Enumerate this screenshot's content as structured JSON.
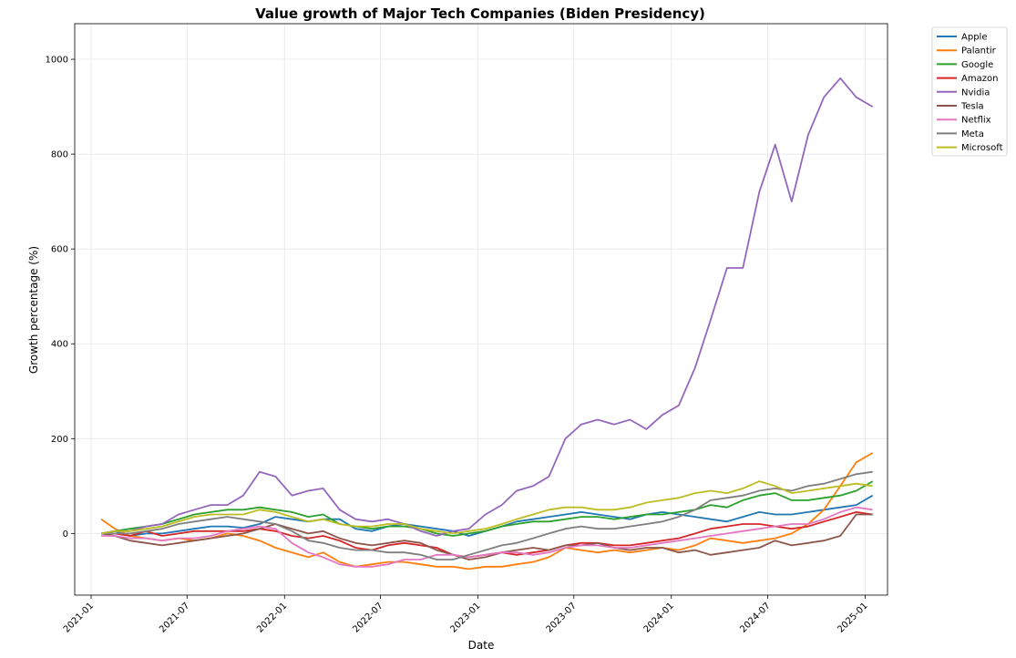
{
  "chart_data": {
    "type": "line",
    "title": "Value growth of Major Tech Companies (Biden Presidency)",
    "xlabel": "Date",
    "ylabel": "Growth percentage (%)",
    "xlim": [
      "2020-12-01",
      "2025-02-12"
    ],
    "ylim": [
      -130,
      1075
    ],
    "x_ticks": [
      "2021-01",
      "2021-07",
      "2022-01",
      "2022-07",
      "2023-01",
      "2023-07",
      "2024-01",
      "2024-07",
      "2025-01"
    ],
    "y_ticks": [
      0,
      200,
      400,
      600,
      800,
      1000
    ],
    "grid": true,
    "legend_position": "outside-top-right",
    "x": [
      "2021-01-20",
      "2021-02-15",
      "2021-03-15",
      "2021-04-15",
      "2021-05-15",
      "2021-06-15",
      "2021-07-15",
      "2021-08-15",
      "2021-09-15",
      "2021-10-15",
      "2021-11-15",
      "2021-12-15",
      "2022-01-15",
      "2022-02-15",
      "2022-03-15",
      "2022-04-15",
      "2022-05-15",
      "2022-06-15",
      "2022-07-15",
      "2022-08-15",
      "2022-09-15",
      "2022-10-15",
      "2022-11-15",
      "2022-12-15",
      "2023-01-15",
      "2023-02-15",
      "2023-03-15",
      "2023-04-15",
      "2023-05-15",
      "2023-06-15",
      "2023-07-15",
      "2023-08-15",
      "2023-09-15",
      "2023-10-15",
      "2023-11-15",
      "2023-12-15",
      "2024-01-15",
      "2024-02-15",
      "2024-03-15",
      "2024-04-15",
      "2024-05-15",
      "2024-06-15",
      "2024-07-15",
      "2024-08-15",
      "2024-09-15",
      "2024-10-15",
      "2024-11-15",
      "2024-12-15",
      "2025-01-15"
    ],
    "series": [
      {
        "name": "Apple",
        "color": "#1f77b4",
        "values": [
          0,
          5,
          -5,
          0,
          0,
          5,
          10,
          15,
          15,
          12,
          20,
          35,
          30,
          25,
          30,
          30,
          10,
          5,
          15,
          20,
          15,
          10,
          5,
          -5,
          5,
          15,
          25,
          30,
          35,
          40,
          45,
          40,
          35,
          30,
          40,
          45,
          40,
          35,
          30,
          25,
          35,
          45,
          40,
          40,
          45,
          50,
          55,
          60,
          80
        ]
      },
      {
        "name": "Palantir",
        "color": "#ff7f0e",
        "values": [
          30,
          10,
          -5,
          -10,
          -15,
          -10,
          -15,
          -10,
          0,
          -5,
          -15,
          -30,
          -40,
          -50,
          -40,
          -60,
          -70,
          -65,
          -60,
          -60,
          -65,
          -70,
          -70,
          -75,
          -70,
          -70,
          -65,
          -60,
          -50,
          -30,
          -35,
          -40,
          -35,
          -40,
          -35,
          -30,
          -35,
          -25,
          -10,
          -15,
          -20,
          -15,
          -10,
          0,
          20,
          50,
          100,
          150,
          170
        ]
      },
      {
        "name": "Google",
        "color": "#2ca02c",
        "values": [
          0,
          5,
          10,
          15,
          20,
          30,
          40,
          45,
          50,
          50,
          55,
          50,
          45,
          35,
          40,
          20,
          15,
          10,
          15,
          15,
          10,
          0,
          -5,
          0,
          5,
          15,
          20,
          25,
          25,
          30,
          35,
          35,
          30,
          35,
          40,
          40,
          45,
          50,
          60,
          55,
          70,
          80,
          85,
          70,
          70,
          75,
          80,
          90,
          110
        ]
      },
      {
        "name": "Amazon",
        "color": "#d62728",
        "values": [
          0,
          0,
          -5,
          5,
          -5,
          0,
          5,
          5,
          5,
          5,
          10,
          5,
          -5,
          -10,
          -5,
          -15,
          -30,
          -35,
          -25,
          -20,
          -25,
          -30,
          -45,
          -50,
          -45,
          -40,
          -45,
          -40,
          -35,
          -25,
          -20,
          -20,
          -25,
          -25,
          -20,
          -15,
          -10,
          0,
          10,
          15,
          20,
          20,
          15,
          10,
          15,
          25,
          35,
          45,
          40
        ]
      },
      {
        "name": "Nvidia",
        "color": "#9467bd",
        "values": [
          0,
          5,
          5,
          15,
          20,
          40,
          50,
          60,
          60,
          80,
          130,
          120,
          80,
          90,
          95,
          50,
          30,
          25,
          30,
          20,
          5,
          -5,
          5,
          10,
          40,
          60,
          90,
          100,
          120,
          200,
          230,
          240,
          230,
          240,
          220,
          250,
          270,
          350,
          450,
          560,
          560,
          720,
          820,
          700,
          840,
          920,
          960,
          920,
          900
        ]
      },
      {
        "name": "Tesla",
        "color": "#8c564b",
        "values": [
          0,
          -5,
          -15,
          -20,
          -25,
          -20,
          -15,
          -10,
          -5,
          0,
          10,
          20,
          10,
          0,
          5,
          -10,
          -20,
          -25,
          -20,
          -15,
          -20,
          -35,
          -45,
          -55,
          -50,
          -40,
          -35,
          -30,
          -35,
          -25,
          -25,
          -20,
          -30,
          -35,
          -30,
          -30,
          -40,
          -35,
          -45,
          -40,
          -35,
          -30,
          -15,
          -25,
          -20,
          -15,
          -5,
          40,
          40
        ]
      },
      {
        "name": "Netflix",
        "color": "#e377c2",
        "values": [
          -5,
          -5,
          -10,
          -10,
          -15,
          -10,
          -10,
          -5,
          5,
          10,
          15,
          10,
          -20,
          -40,
          -50,
          -65,
          -70,
          -70,
          -65,
          -55,
          -55,
          -45,
          -45,
          -50,
          -45,
          -40,
          -40,
          -45,
          -40,
          -30,
          -25,
          -25,
          -30,
          -30,
          -25,
          -20,
          -15,
          -10,
          -5,
          0,
          5,
          10,
          15,
          20,
          20,
          30,
          45,
          55,
          50
        ]
      },
      {
        "name": "Meta",
        "color": "#7f7f7f",
        "values": [
          0,
          0,
          0,
          5,
          10,
          20,
          25,
          30,
          35,
          30,
          25,
          20,
          5,
          -15,
          -20,
          -30,
          -35,
          -35,
          -40,
          -40,
          -45,
          -55,
          -55,
          -45,
          -35,
          -25,
          -20,
          -10,
          0,
          10,
          15,
          10,
          10,
          15,
          20,
          25,
          35,
          50,
          70,
          75,
          80,
          90,
          95,
          90,
          100,
          105,
          115,
          125,
          130
        ]
      },
      {
        "name": "Microsoft",
        "color": "#bcbd22",
        "values": [
          0,
          5,
          5,
          10,
          15,
          25,
          35,
          40,
          40,
          40,
          50,
          45,
          35,
          25,
          30,
          20,
          15,
          15,
          20,
          20,
          10,
          5,
          0,
          5,
          10,
          20,
          30,
          40,
          50,
          55,
          55,
          50,
          50,
          55,
          65,
          70,
          75,
          85,
          90,
          85,
          95,
          110,
          100,
          85,
          90,
          95,
          100,
          105,
          100
        ]
      }
    ]
  }
}
